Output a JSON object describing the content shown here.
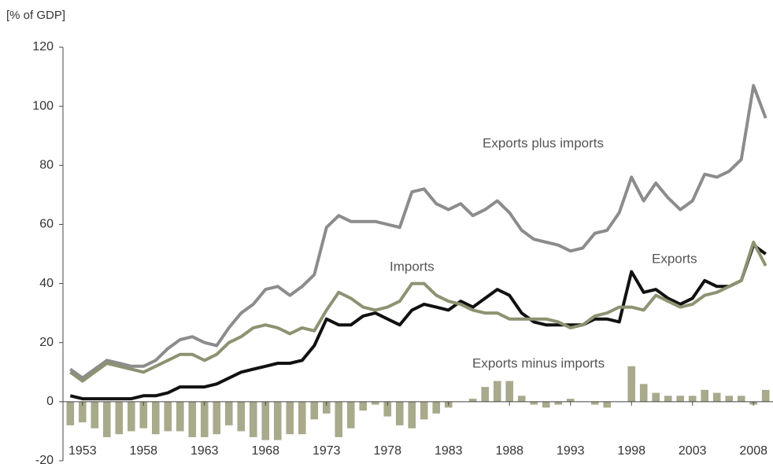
{
  "chart_data": {
    "type": "line",
    "y_label": "[% of GDP]",
    "x": [
      1952,
      1953,
      1954,
      1955,
      1956,
      1957,
      1958,
      1959,
      1960,
      1961,
      1962,
      1963,
      1964,
      1965,
      1966,
      1967,
      1968,
      1969,
      1970,
      1971,
      1972,
      1973,
      1974,
      1975,
      1976,
      1977,
      1978,
      1979,
      1980,
      1981,
      1982,
      1983,
      1984,
      1985,
      1986,
      1987,
      1988,
      1989,
      1990,
      1991,
      1992,
      1993,
      1994,
      1995,
      1996,
      1997,
      1998,
      1999,
      2000,
      2001,
      2002,
      2003,
      2004,
      2005,
      2006,
      2007,
      2008,
      2009
    ],
    "xlim": [
      1951.4,
      2009.6
    ],
    "xticks": [
      1953,
      1958,
      1963,
      1968,
      1973,
      1978,
      1983,
      1988,
      1993,
      1998,
      2003,
      2008
    ],
    "ylim": [
      -20,
      120
    ],
    "yticks": [
      -20,
      0,
      20,
      40,
      60,
      80,
      100,
      120
    ],
    "series": [
      {
        "name": "Exports minus imports",
        "type": "bar",
        "color": "#a9a98c",
        "values": [
          -8,
          -7,
          -9,
          -12,
          -11,
          -10,
          -9,
          -11,
          -10,
          -10,
          -12,
          -12,
          -11,
          -8,
          -10,
          -12,
          -13,
          -13,
          -11,
          -11,
          -6,
          -4,
          -12,
          -9,
          -3,
          -1,
          -5,
          -8,
          -9,
          -6,
          -4,
          -2,
          0,
          1,
          5,
          7,
          7,
          2,
          -1,
          -2,
          -1,
          1,
          0,
          -1,
          -2,
          0,
          12,
          6,
          3,
          2,
          2,
          2,
          4,
          3,
          2,
          2,
          -1,
          4
        ]
      },
      {
        "name": "Exports plus imports",
        "type": "line",
        "color": "#8c8c8c",
        "values": [
          11,
          8,
          11,
          14,
          13,
          12,
          12,
          14,
          18,
          21,
          22,
          20,
          19,
          25,
          30,
          33,
          38,
          39,
          36,
          39,
          43,
          59,
          63,
          61,
          61,
          61,
          60,
          59,
          71,
          72,
          67,
          65,
          67,
          63,
          65,
          68,
          64,
          58,
          55,
          54,
          53,
          51,
          52,
          57,
          58,
          64,
          76,
          68,
          74,
          69,
          65,
          68,
          77,
          76,
          78,
          82,
          107,
          96
        ]
      },
      {
        "name": "Imports",
        "type": "line",
        "color": "#111111",
        "values": [
          2,
          1,
          1,
          1,
          1,
          1,
          2,
          2,
          3,
          5,
          5,
          5,
          6,
          8,
          10,
          11,
          12,
          13,
          13,
          14,
          19,
          28,
          26,
          26,
          29,
          30,
          28,
          26,
          31,
          33,
          32,
          31,
          34,
          32,
          35,
          38,
          36,
          30,
          27,
          26,
          26,
          26,
          26,
          28,
          28,
          27,
          44,
          37,
          38,
          35,
          33,
          35,
          41,
          39,
          39,
          41,
          53,
          50
        ]
      },
      {
        "name": "Exports",
        "type": "line",
        "color": "#8e9272",
        "values": [
          10,
          7,
          10,
          13,
          12,
          11,
          10,
          12,
          14,
          16,
          16,
          14,
          16,
          20,
          22,
          25,
          26,
          25,
          23,
          25,
          24,
          31,
          37,
          35,
          32,
          31,
          32,
          34,
          40,
          40,
          36,
          34,
          33,
          31,
          30,
          30,
          28,
          28,
          28,
          28,
          27,
          25,
          26,
          29,
          30,
          32,
          32,
          31,
          36,
          34,
          32,
          33,
          36,
          37,
          39,
          41,
          54,
          46
        ]
      }
    ]
  }
}
